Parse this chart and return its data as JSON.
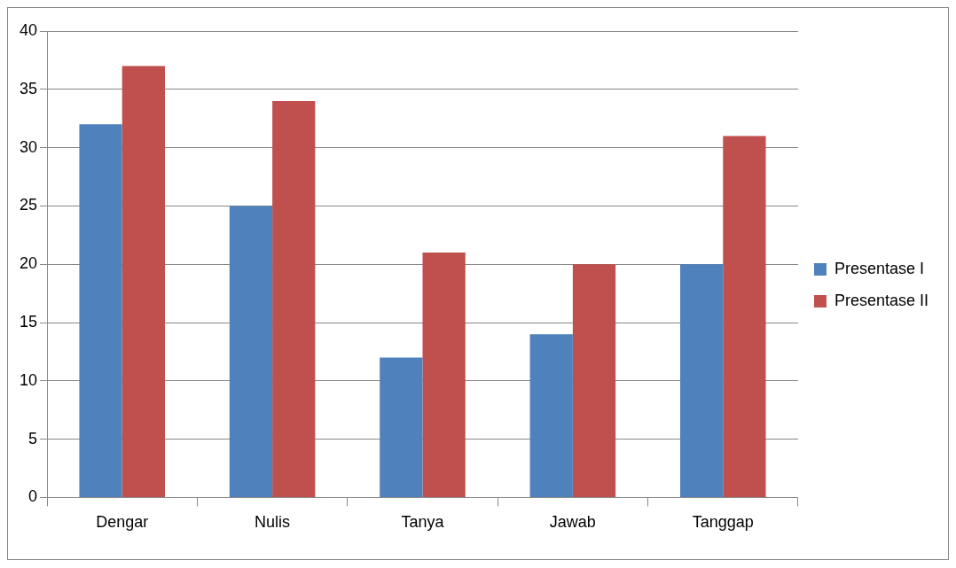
{
  "chart_data": {
    "type": "bar",
    "categories": [
      "Dengar",
      "Nulis",
      "Tanya",
      "Jawab",
      "Tanggap"
    ],
    "series": [
      {
        "name": "Presentase I",
        "color": "#4f81bd",
        "values": [
          32,
          25,
          12,
          14,
          20
        ]
      },
      {
        "name": "Presentase II",
        "color": "#c0504d",
        "values": [
          37,
          34,
          21,
          20,
          31
        ]
      }
    ],
    "ylim": [
      0,
      40
    ],
    "yticks": [
      0,
      5,
      10,
      15,
      20,
      25,
      30,
      35,
      40
    ],
    "grid": "y",
    "legend": "right"
  }
}
